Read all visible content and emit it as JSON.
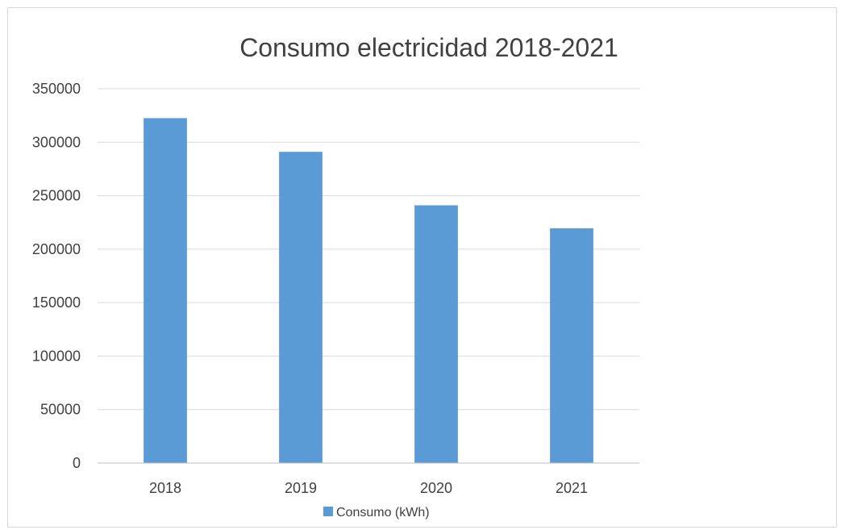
{
  "chart_data": {
    "type": "bar",
    "title": "Consumo electricidad 2018-2021",
    "categories": [
      "2018",
      "2019",
      "2020",
      "2021"
    ],
    "series": [
      {
        "name": "Consumo (kWh)",
        "values": [
          322500,
          291000,
          241000,
          219500
        ],
        "color": "#5b9bd5"
      }
    ],
    "ylim": [
      0,
      350000
    ],
    "yticks": [
      0,
      50000,
      100000,
      150000,
      200000,
      250000,
      300000,
      350000
    ],
    "grid": true,
    "legend": "bottom"
  }
}
